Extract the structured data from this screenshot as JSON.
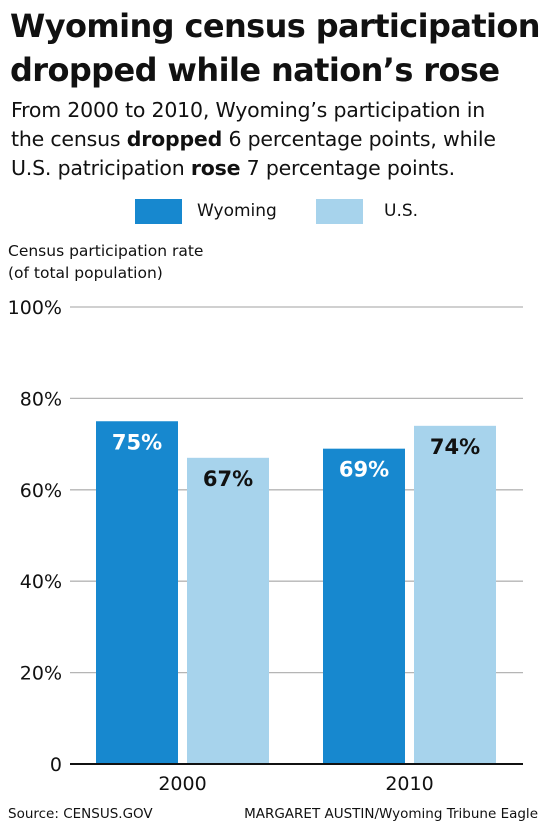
{
  "title": {
    "line1": "Wyoming census participation",
    "line2": "dropped while nation’s rose"
  },
  "subtitle": {
    "line1": "From 2000 to 2010, Wyoming’s participation in",
    "line2_pre": "the census ",
    "line2_bold": "dropped",
    "line2_post": " 6 percentage points, while",
    "line3_pre": "U.S. patricipation ",
    "line3_bold": "rose",
    "line3_post": " 7 percentage points."
  },
  "footer": {
    "source": "Source: CENSUS.GOV",
    "credit": "MARGARET AUSTIN/Wyoming Tribune Eagle"
  },
  "chart_data": {
    "type": "bar",
    "categories": [
      "2000",
      "2010"
    ],
    "series": [
      {
        "name": "Wyoming",
        "values": [
          75,
          69
        ],
        "color": "#1788cf",
        "label_color": "#ffffff"
      },
      {
        "name": "U.S.",
        "values": [
          67,
          74
        ],
        "color": "#a7d3ec",
        "label_color": "#111111"
      }
    ],
    "data_labels": [
      [
        "75%",
        "69%"
      ],
      [
        "67%",
        "74%"
      ]
    ],
    "ylabel_line1": "Census participation rate",
    "ylabel_line2": "(of total population)",
    "ylim": [
      0,
      100
    ],
    "yticks": [
      0,
      20,
      40,
      60,
      80,
      100
    ],
    "ytick_labels": [
      "0",
      "20%",
      "40%",
      "60%",
      "80%",
      "100%"
    ],
    "grid": true,
    "legend_position": "top-center"
  }
}
